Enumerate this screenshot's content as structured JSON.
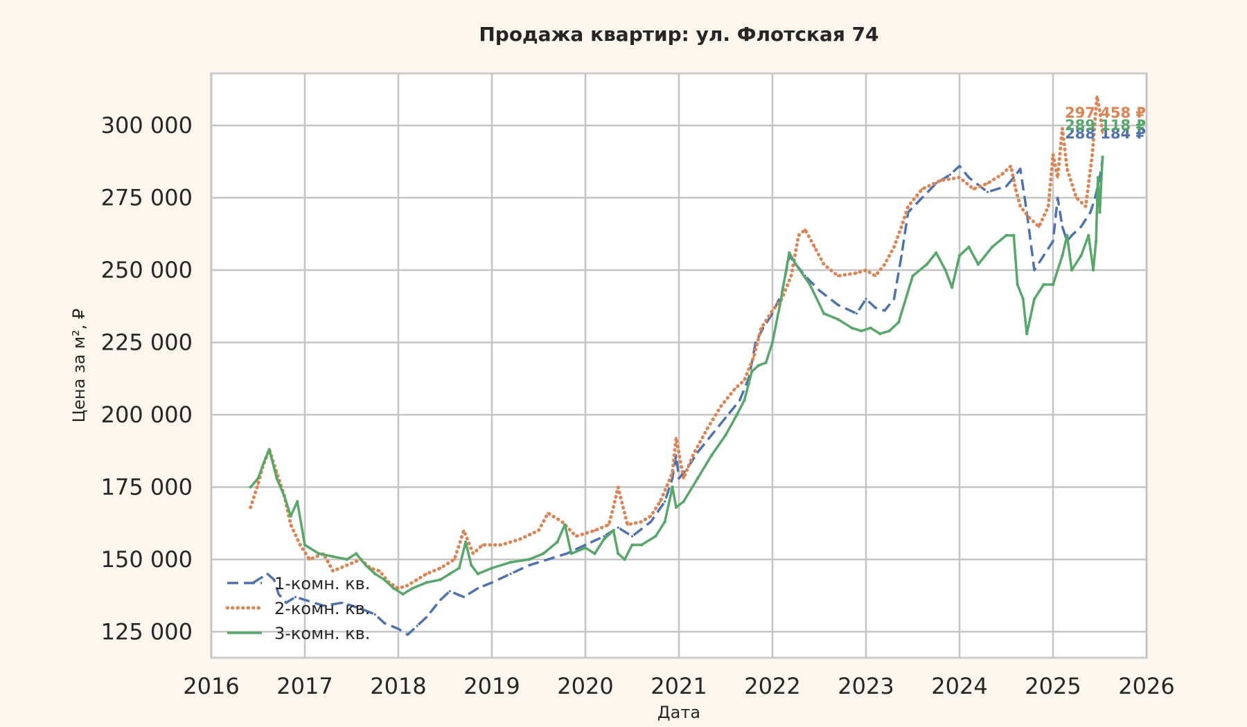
{
  "chart_data": {
    "type": "line",
    "title": "Продажа квартир: ул. Флотская 74",
    "xlabel": "Дата",
    "ylabel": "Цена за м², ₽",
    "xlim": [
      2016.0,
      2026.0
    ],
    "ylim": [
      116000,
      318000
    ],
    "x_ticks": [
      "2016",
      "2017",
      "2018",
      "2019",
      "2020",
      "2021",
      "2022",
      "2023",
      "2024",
      "2025",
      "2026"
    ],
    "y_ticks": [
      {
        "value": 125000,
        "label": "125 000"
      },
      {
        "value": 150000,
        "label": "150 000"
      },
      {
        "value": 175000,
        "label": "175 000"
      },
      {
        "value": 200000,
        "label": "200 000"
      },
      {
        "value": 225000,
        "label": "225 000"
      },
      {
        "value": 250000,
        "label": "250 000"
      },
      {
        "value": 275000,
        "label": "275 000"
      },
      {
        "value": 300000,
        "label": "300 000"
      }
    ],
    "grid": true,
    "legend_position": "lower-left",
    "series": [
      {
        "name": "1-комн. кв.",
        "color": "#4c72b0",
        "style": "dashed",
        "end_label": "288 184 ₽",
        "x": [
          2016.45,
          2016.6,
          2016.67,
          2016.72,
          2016.8,
          2016.9,
          2017.0,
          2017.2,
          2017.4,
          2017.6,
          2017.75,
          2017.85,
          2018.0,
          2018.1,
          2018.2,
          2018.3,
          2018.45,
          2018.55,
          2018.7,
          2018.85,
          2019.0,
          2019.2,
          2019.4,
          2019.6,
          2019.8,
          2020.0,
          2020.2,
          2020.35,
          2020.5,
          2020.7,
          2020.85,
          2020.93,
          2020.97,
          2021.0,
          2021.1,
          2021.2,
          2021.35,
          2021.5,
          2021.65,
          2021.75,
          2021.82,
          2021.9,
          2022.0,
          2022.1,
          2022.18,
          2022.25,
          2022.35,
          2022.5,
          2022.7,
          2022.9,
          2023.0,
          2023.1,
          2023.2,
          2023.3,
          2023.38,
          2023.45,
          2023.6,
          2023.75,
          2023.9,
          2024.0,
          2024.1,
          2024.3,
          2024.5,
          2024.58,
          2024.65,
          2024.72,
          2024.8,
          2024.9,
          2025.0,
          2025.05,
          2025.1,
          2025.15,
          2025.2,
          2025.3,
          2025.4,
          2025.45,
          2025.5,
          2025.53
        ],
        "y": [
          142000,
          145000,
          143000,
          138000,
          135000,
          137000,
          136000,
          134000,
          135000,
          133000,
          131000,
          128000,
          126000,
          124000,
          127000,
          130000,
          136000,
          139000,
          137000,
          140000,
          142000,
          145000,
          148000,
          150000,
          152000,
          155000,
          158000,
          161000,
          158000,
          163000,
          170000,
          178000,
          186000,
          178000,
          182000,
          187000,
          193000,
          199000,
          205000,
          213000,
          225000,
          230000,
          235000,
          242000,
          255000,
          252000,
          248000,
          243000,
          238000,
          235000,
          240000,
          237000,
          236000,
          240000,
          255000,
          270000,
          275000,
          280000,
          283000,
          286000,
          282000,
          277000,
          279000,
          282000,
          285000,
          270000,
          250000,
          255000,
          260000,
          275000,
          265000,
          260000,
          262000,
          265000,
          270000,
          275000,
          282000,
          288184
        ]
      },
      {
        "name": "2-комн. кв.",
        "color": "#dd8452",
        "style": "dotted",
        "end_label": "297 458 ₽",
        "x": [
          2016.42,
          2016.5,
          2016.55,
          2016.62,
          2016.7,
          2016.78,
          2016.85,
          2016.95,
          2017.05,
          2017.2,
          2017.3,
          2017.45,
          2017.6,
          2017.7,
          2017.8,
          2017.9,
          2018.0,
          2018.1,
          2018.2,
          2018.3,
          2018.45,
          2018.6,
          2018.7,
          2018.8,
          2018.9,
          2019.1,
          2019.3,
          2019.5,
          2019.6,
          2019.75,
          2019.9,
          2020.1,
          2020.25,
          2020.3,
          2020.35,
          2020.45,
          2020.6,
          2020.7,
          2020.8,
          2020.88,
          2020.93,
          2020.97,
          2021.05,
          2021.15,
          2021.3,
          2021.45,
          2021.6,
          2021.7,
          2021.8,
          2021.88,
          2022.0,
          2022.1,
          2022.2,
          2022.28,
          2022.35,
          2022.45,
          2022.55,
          2022.7,
          2022.9,
          2023.0,
          2023.1,
          2023.2,
          2023.3,
          2023.38,
          2023.45,
          2023.6,
          2023.8,
          2024.0,
          2024.15,
          2024.3,
          2024.45,
          2024.55,
          2024.6,
          2024.65,
          2024.75,
          2024.85,
          2024.95,
          2025.0,
          2025.05,
          2025.1,
          2025.15,
          2025.25,
          2025.35,
          2025.42,
          2025.47,
          2025.5,
          2025.53
        ],
        "y": [
          168000,
          176000,
          182000,
          188000,
          180000,
          172000,
          162000,
          155000,
          150000,
          152000,
          146000,
          148000,
          150000,
          147000,
          146000,
          142000,
          140000,
          141000,
          143000,
          145000,
          147000,
          150000,
          160000,
          152000,
          155000,
          155000,
          157000,
          160000,
          166000,
          163000,
          158000,
          160000,
          162000,
          168000,
          175000,
          162000,
          163000,
          165000,
          170000,
          176000,
          180000,
          192000,
          178000,
          186000,
          195000,
          203000,
          209000,
          212000,
          220000,
          230000,
          236000,
          240000,
          248000,
          262000,
          264000,
          258000,
          252000,
          248000,
          249000,
          250000,
          248000,
          252000,
          258000,
          265000,
          272000,
          278000,
          281000,
          282000,
          278000,
          280000,
          283000,
          286000,
          278000,
          272000,
          268000,
          265000,
          272000,
          290000,
          282000,
          299000,
          285000,
          275000,
          272000,
          290000,
          310000,
          305000,
          297458
        ]
      },
      {
        "name": "3-комн. кв.",
        "color": "#55a868",
        "style": "solid",
        "end_label": "289 118 ₽",
        "x": [
          2016.42,
          2016.5,
          2016.58,
          2016.62,
          2016.7,
          2016.78,
          2016.85,
          2016.92,
          2017.0,
          2017.15,
          2017.3,
          2017.45,
          2017.55,
          2017.65,
          2017.75,
          2017.85,
          2017.95,
          2018.05,
          2018.15,
          2018.3,
          2018.45,
          2018.55,
          2018.65,
          2018.72,
          2018.78,
          2018.85,
          2019.0,
          2019.2,
          2019.4,
          2019.55,
          2019.7,
          2019.78,
          2019.85,
          2020.0,
          2020.1,
          2020.2,
          2020.3,
          2020.35,
          2020.42,
          2020.5,
          2020.6,
          2020.75,
          2020.85,
          2020.93,
          2020.97,
          2021.05,
          2021.2,
          2021.35,
          2021.5,
          2021.62,
          2021.7,
          2021.78,
          2021.85,
          2021.93,
          2022.0,
          2022.08,
          2022.18,
          2022.25,
          2022.4,
          2022.55,
          2022.7,
          2022.85,
          2022.95,
          2023.05,
          2023.15,
          2023.25,
          2023.35,
          2023.5,
          2023.65,
          2023.75,
          2023.85,
          2023.92,
          2024.0,
          2024.1,
          2024.2,
          2024.35,
          2024.5,
          2024.58,
          2024.62,
          2024.68,
          2024.72,
          2024.8,
          2024.9,
          2025.0,
          2025.1,
          2025.15,
          2025.2,
          2025.3,
          2025.38,
          2025.43,
          2025.46,
          2025.48,
          2025.5,
          2025.53
        ],
        "y": [
          175000,
          178000,
          185000,
          188000,
          178000,
          172000,
          165000,
          170000,
          155000,
          152000,
          151000,
          150000,
          152000,
          148000,
          145000,
          143000,
          140000,
          138000,
          140000,
          142000,
          143000,
          145000,
          147000,
          156000,
          148000,
          145000,
          147000,
          149000,
          150000,
          152000,
          156000,
          162000,
          152000,
          154000,
          152000,
          157000,
          160000,
          152000,
          150000,
          155000,
          155000,
          158000,
          163000,
          175000,
          168000,
          170000,
          178000,
          186000,
          193000,
          200000,
          205000,
          215000,
          217000,
          218000,
          225000,
          238000,
          256000,
          252000,
          245000,
          235000,
          233000,
          230000,
          229000,
          230000,
          228000,
          229000,
          232000,
          248000,
          252000,
          256000,
          250000,
          244000,
          255000,
          258000,
          252000,
          258000,
          262000,
          262000,
          245000,
          240000,
          228000,
          240000,
          245000,
          245000,
          255000,
          262000,
          250000,
          255000,
          262000,
          250000,
          260000,
          282000,
          270000,
          289118
        ]
      }
    ]
  }
}
